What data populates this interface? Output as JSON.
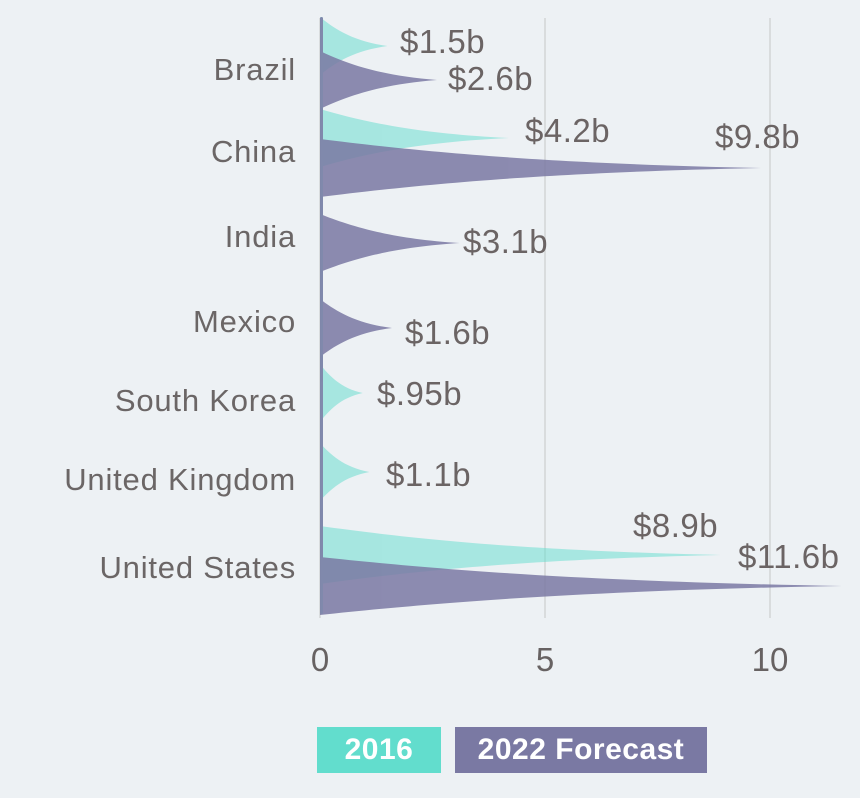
{
  "chart_data": {
    "type": "area",
    "variant": "horizontal-spike-ridgeline",
    "title": "",
    "categories": [
      "Brazil",
      "China",
      "India",
      "Mexico",
      "South Korea",
      "United Kingdom",
      "United States"
    ],
    "series": [
      {
        "name": "2016",
        "color": "#62ddcd",
        "fill_opacity": 0.5,
        "values": [
          1.5,
          4.2,
          null,
          null,
          0.95,
          1.1,
          8.9
        ],
        "value_labels": [
          "$1.5b",
          "$4.2b",
          "",
          "",
          "$.95b",
          "$1.1b",
          "$8.9b"
        ]
      },
      {
        "name": "2022 Forecast",
        "color": "#7a79a3",
        "fill_opacity": 0.85,
        "values": [
          2.6,
          9.8,
          3.1,
          1.6,
          null,
          null,
          11.6
        ],
        "value_labels": [
          "$2.6b",
          "$9.8b",
          "$3.1b",
          "$1.6b",
          "",
          "",
          "$11.6b"
        ]
      }
    ],
    "x_axis": {
      "ticks": [
        0,
        5,
        10
      ],
      "tick_labels": [
        "0",
        "5",
        "10"
      ],
      "range": [
        0,
        12
      ]
    },
    "grid": true,
    "legend_position": "bottom",
    "colors": {
      "background": "#edf1f4",
      "text": "#6b6666",
      "gridline": "#d9dcdd",
      "legend_text": "#ffffff"
    }
  },
  "legend": {
    "items": [
      {
        "label": "2016",
        "color": "#62ddcd"
      },
      {
        "label": "2022 Forecast",
        "color": "#7a79a3"
      }
    ]
  }
}
